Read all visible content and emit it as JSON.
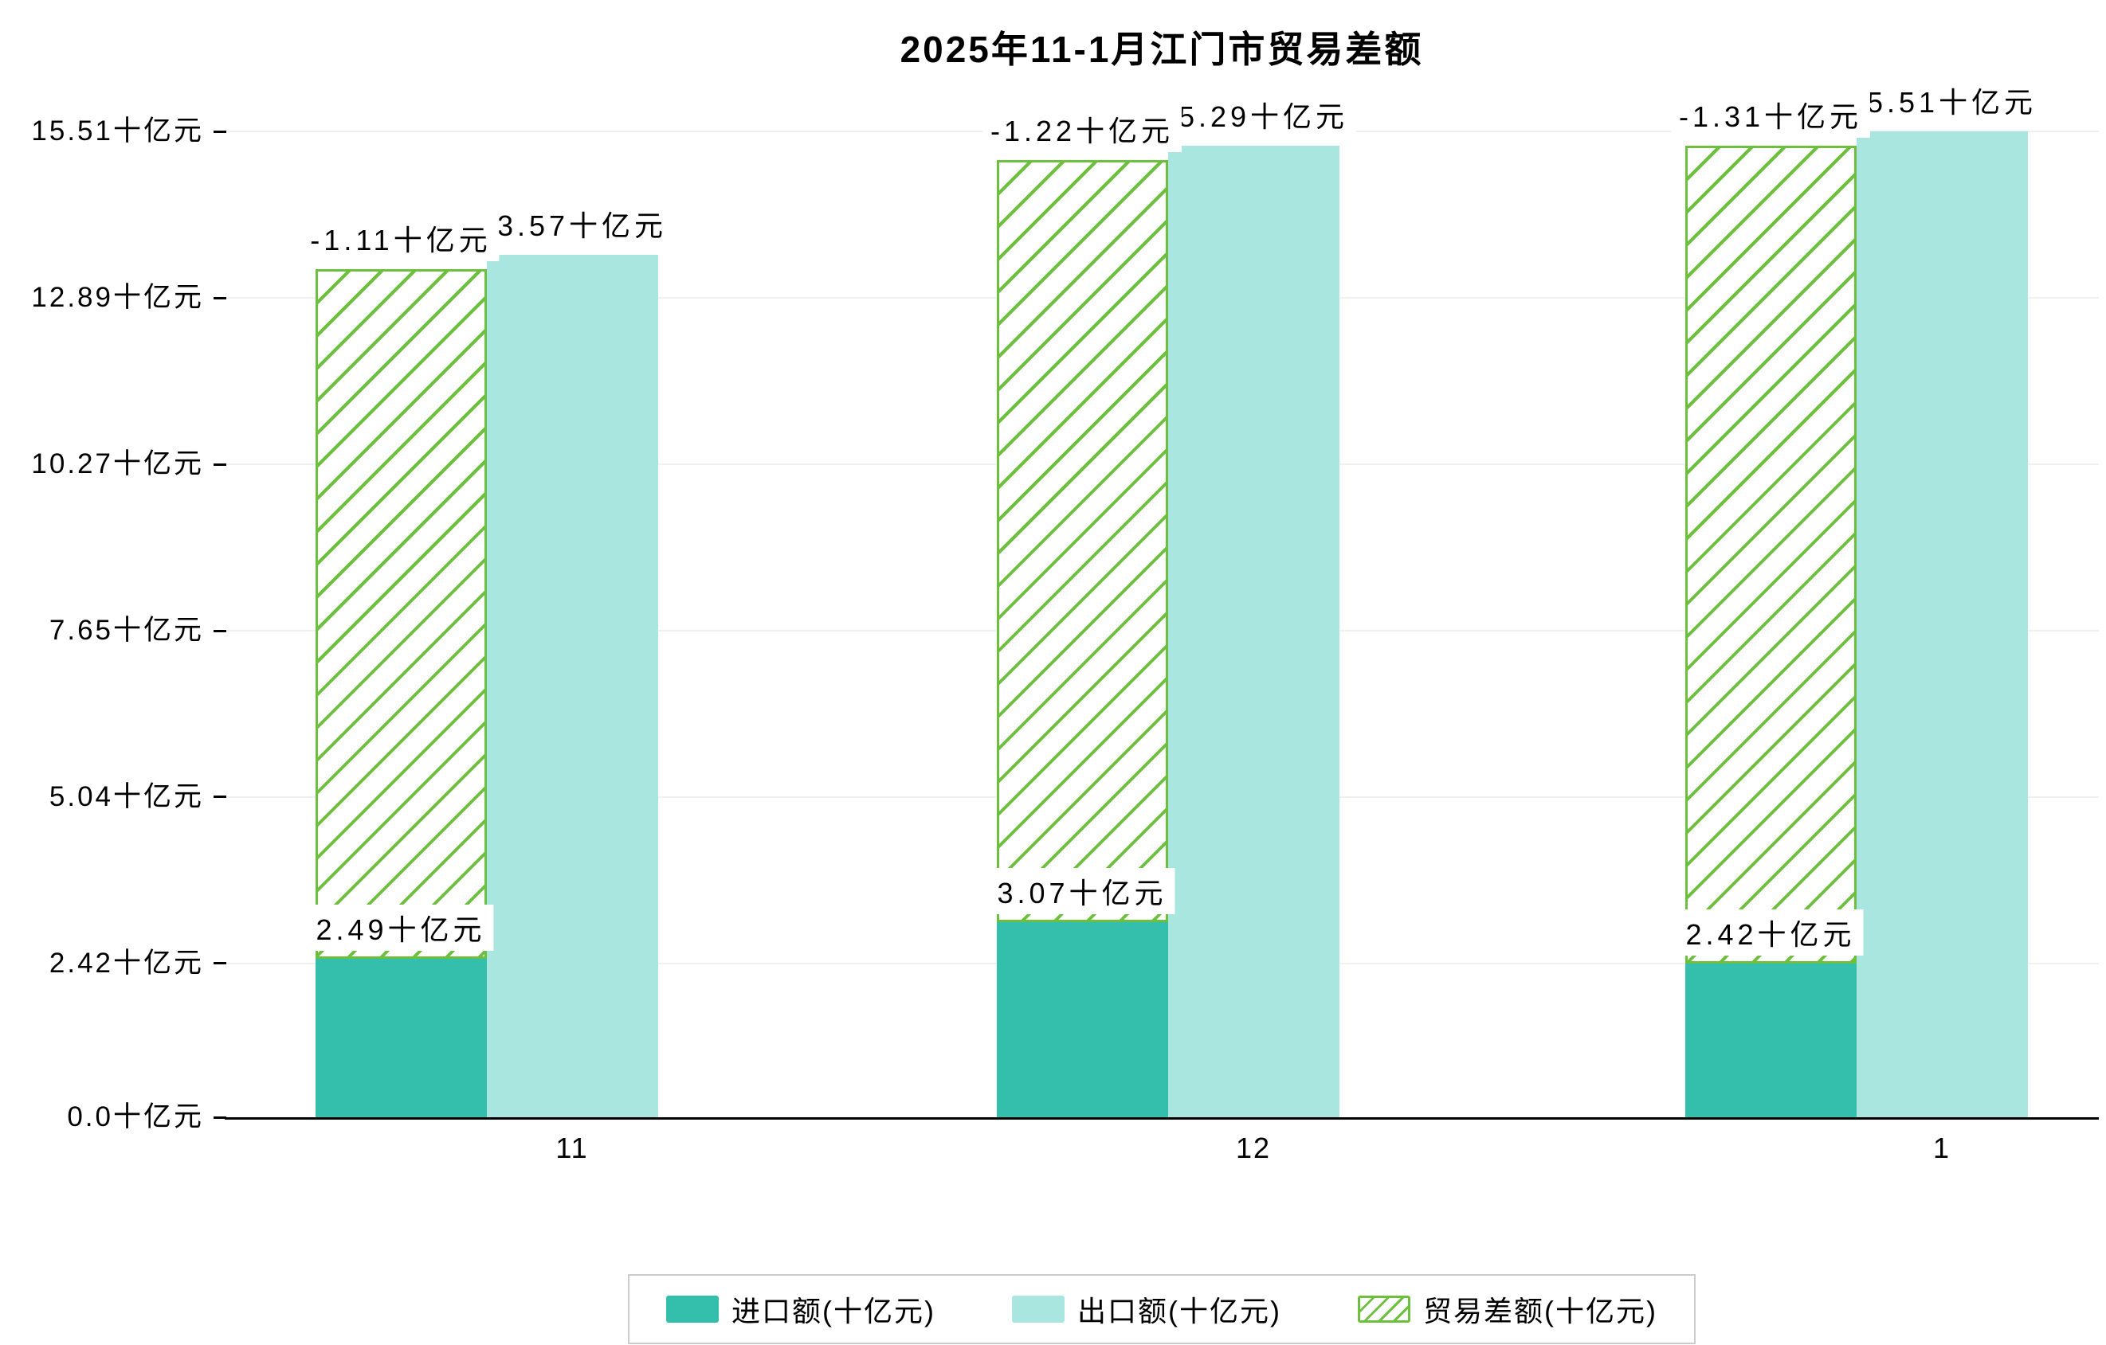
{
  "title": "2025年11-1月江门市贸易差额",
  "chart_data": {
    "type": "bar",
    "title": "2025年11-1月江门市贸易差额",
    "categories": [
      "11",
      "12",
      "1"
    ],
    "unit": "十亿元",
    "series": [
      {
        "name": "进口额(十亿元)",
        "values": [
          2.49,
          3.07,
          2.42
        ],
        "labels": [
          "2.49十亿元",
          "3.07十亿元",
          "2.42十亿元"
        ],
        "color": "#34bfad",
        "style": "solid"
      },
      {
        "name": "出口额(十亿元)",
        "values": [
          13.57,
          15.29,
          15.51
        ],
        "labels": [
          "13.57十亿元",
          "15.29十亿元",
          "15.51十亿元"
        ],
        "color": "#a9e6df",
        "style": "solid"
      },
      {
        "name": "贸易差额(十亿元)",
        "values": [
          -1.11,
          -1.22,
          -1.31
        ],
        "labels": [
          "-1.11十亿元",
          "-1.22十亿元",
          "-1.31十亿元"
        ],
        "color": "#6dbf3e",
        "style": "hatched",
        "note": "hatched outline bar drawn spanning from the import value up to the export value"
      }
    ],
    "y_axis": {
      "tick_labels": [
        "0.0十亿元",
        "2.42十亿元",
        "5.04十亿元",
        "7.65十亿元",
        "10.27十亿元",
        "12.89十亿元",
        "15.51十亿元"
      ],
      "tick_values": [
        0.0,
        2.42,
        5.04,
        7.65,
        10.27,
        12.89,
        15.51
      ],
      "ylim": [
        0,
        15.51
      ]
    },
    "x_axis": {
      "tick_labels": [
        "11",
        "12",
        "1"
      ]
    },
    "grid": true,
    "legend_position": "bottom"
  },
  "colors": {
    "import_bar": "#34bfad",
    "export_bar": "#a9e6df",
    "balance_hatch": "#6dbf3e",
    "axis": "#000000",
    "gridline": "#f0f0f0",
    "legend_border": "#cccccc"
  }
}
